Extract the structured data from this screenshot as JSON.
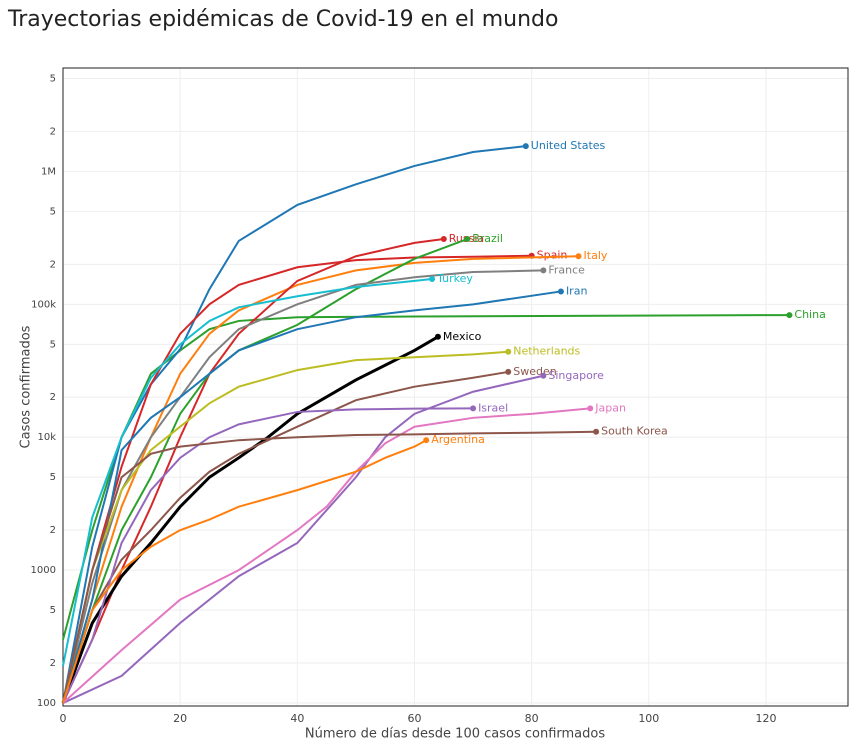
{
  "chart_data": {
    "type": "line",
    "title": "Trayectorias epidémicas de Covid-19 en el mundo",
    "xlabel": "Número de días desde 100 casos confirmados",
    "ylabel": "Casos confirmados",
    "log_y": true,
    "grid": true,
    "xlim": [
      0,
      134
    ],
    "ylim": [
      95,
      6000000
    ],
    "xticks": [
      0,
      20,
      40,
      60,
      80,
      100,
      120
    ],
    "yticks": [
      100,
      {
        "value": 200,
        "label": "2"
      },
      {
        "value": 500,
        "label": "5"
      },
      1000,
      {
        "value": 2000,
        "label": "2"
      },
      {
        "value": 5000,
        "label": "5"
      },
      {
        "value": 10000,
        "label": "10k"
      },
      {
        "value": 20000,
        "label": "2"
      },
      {
        "value": 50000,
        "label": "5"
      },
      {
        "value": 100000,
        "label": "100k"
      },
      {
        "value": 200000,
        "label": "2"
      },
      {
        "value": 500000,
        "label": "5"
      },
      {
        "value": 1000000,
        "label": "1M"
      },
      {
        "value": 2000000,
        "label": "2"
      },
      {
        "value": 5000000,
        "label": "5"
      }
    ],
    "series": [
      {
        "name": "China",
        "color": "#2ca02c",
        "x": [
          0,
          5,
          10,
          15,
          20,
          25,
          30,
          40,
          60,
          124
        ],
        "values": [
          300,
          2000,
          10000,
          30000,
          45000,
          65000,
          75000,
          80000,
          81000,
          83000
        ]
      },
      {
        "name": "United States",
        "color": "#1f77b4",
        "x": [
          0,
          5,
          10,
          15,
          20,
          25,
          30,
          40,
          50,
          60,
          70,
          79
        ],
        "values": [
          100,
          1500,
          10000,
          25000,
          46000,
          130000,
          300000,
          560000,
          800000,
          1100000,
          1400000,
          1550000
        ]
      },
      {
        "name": "Spain",
        "color": "#d62728",
        "x": [
          0,
          5,
          10,
          15,
          20,
          25,
          30,
          40,
          50,
          60,
          70,
          80
        ],
        "values": [
          100,
          1000,
          6000,
          25000,
          60000,
          100000,
          140000,
          190000,
          215000,
          225000,
          228000,
          232000
        ]
      },
      {
        "name": "Italy",
        "color": "#ff7f0e",
        "x": [
          0,
          5,
          10,
          15,
          20,
          25,
          30,
          40,
          50,
          60,
          70,
          88
        ],
        "values": [
          100,
          600,
          3000,
          10000,
          30000,
          60000,
          90000,
          140000,
          180000,
          205000,
          220000,
          230000
        ]
      },
      {
        "name": "Russia",
        "color": "#d62728",
        "x": [
          0,
          5,
          10,
          15,
          20,
          25,
          30,
          40,
          50,
          60,
          65
        ],
        "values": [
          100,
          300,
          1000,
          3000,
          10000,
          30000,
          60000,
          150000,
          230000,
          290000,
          310000
        ]
      },
      {
        "name": "Brazil",
        "color": "#2ca02c",
        "x": [
          0,
          5,
          10,
          15,
          20,
          25,
          30,
          40,
          50,
          60,
          69
        ],
        "values": [
          100,
          500,
          2000,
          5000,
          15000,
          30000,
          45000,
          70000,
          130000,
          220000,
          310000
        ]
      },
      {
        "name": "France",
        "color": "#7f7f7f",
        "x": [
          0,
          5,
          10,
          15,
          20,
          25,
          30,
          40,
          50,
          60,
          70,
          82
        ],
        "values": [
          100,
          800,
          4000,
          10000,
          20000,
          40000,
          65000,
          100000,
          140000,
          160000,
          175000,
          180000
        ]
      },
      {
        "name": "Turkey",
        "color": "#17becf",
        "x": [
          0,
          5,
          10,
          15,
          20,
          25,
          30,
          40,
          50,
          60,
          63
        ],
        "values": [
          190,
          2500,
          10000,
          28000,
          50000,
          75000,
          95000,
          115000,
          135000,
          150000,
          155000
        ]
      },
      {
        "name": "Iran",
        "color": "#1f77b4",
        "x": [
          0,
          5,
          10,
          15,
          20,
          25,
          30,
          40,
          50,
          60,
          70,
          85
        ],
        "values": [
          100,
          600,
          8000,
          14000,
          20000,
          30000,
          45000,
          65000,
          80000,
          90000,
          100000,
          125000
        ]
      },
      {
        "name": "Mexico",
        "color": "#000000",
        "x": [
          0,
          5,
          10,
          15,
          20,
          25,
          30,
          35,
          40,
          50,
          60,
          64
        ],
        "values": [
          100,
          400,
          900,
          1600,
          3000,
          5000,
          7000,
          10000,
          15000,
          27000,
          45000,
          57000
        ]
      },
      {
        "name": "Netherlands",
        "color": "#bcbd22",
        "x": [
          0,
          5,
          10,
          15,
          20,
          25,
          30,
          40,
          50,
          60,
          70,
          76
        ],
        "values": [
          100,
          1000,
          4000,
          8000,
          12000,
          18000,
          24000,
          32000,
          38000,
          40000,
          42000,
          44000
        ]
      },
      {
        "name": "Sweden",
        "color": "#8c564b",
        "x": [
          0,
          5,
          10,
          15,
          20,
          25,
          30,
          40,
          50,
          60,
          70,
          76
        ],
        "values": [
          100,
          500,
          1200,
          2000,
          3500,
          5500,
          7500,
          12000,
          19000,
          24000,
          28000,
          31000
        ]
      },
      {
        "name": "Singapore",
        "color": "#9467bd",
        "x": [
          0,
          10,
          20,
          30,
          40,
          50,
          55,
          60,
          70,
          82
        ],
        "values": [
          100,
          160,
          400,
          900,
          1600,
          5000,
          10000,
          15000,
          22000,
          29000
        ]
      },
      {
        "name": "Israel",
        "color": "#9467bd",
        "x": [
          0,
          5,
          10,
          15,
          20,
          25,
          30,
          40,
          50,
          60,
          70
        ],
        "values": [
          100,
          300,
          1600,
          4000,
          7000,
          10000,
          12500,
          15500,
          16200,
          16400,
          16500
        ]
      },
      {
        "name": "Japan",
        "color": "#e377c2",
        "x": [
          0,
          10,
          20,
          30,
          40,
          45,
          50,
          55,
          60,
          70,
          80,
          90
        ],
        "values": [
          100,
          250,
          600,
          1000,
          2000,
          3000,
          5500,
          9000,
          12000,
          14000,
          15000,
          16500
        ]
      },
      {
        "name": "South Korea",
        "color": "#8c564b",
        "x": [
          0,
          5,
          10,
          15,
          20,
          30,
          40,
          50,
          60,
          70,
          80,
          91
        ],
        "values": [
          100,
          1000,
          5000,
          7500,
          8500,
          9500,
          10000,
          10400,
          10500,
          10700,
          10800,
          11000
        ]
      },
      {
        "name": "Argentina",
        "color": "#ff7f0e",
        "x": [
          0,
          5,
          10,
          15,
          20,
          25,
          30,
          40,
          50,
          55,
          60,
          62
        ],
        "values": [
          100,
          500,
          1000,
          1500,
          2000,
          2400,
          3000,
          4000,
          5500,
          7000,
          8500,
          9500
        ]
      }
    ]
  }
}
